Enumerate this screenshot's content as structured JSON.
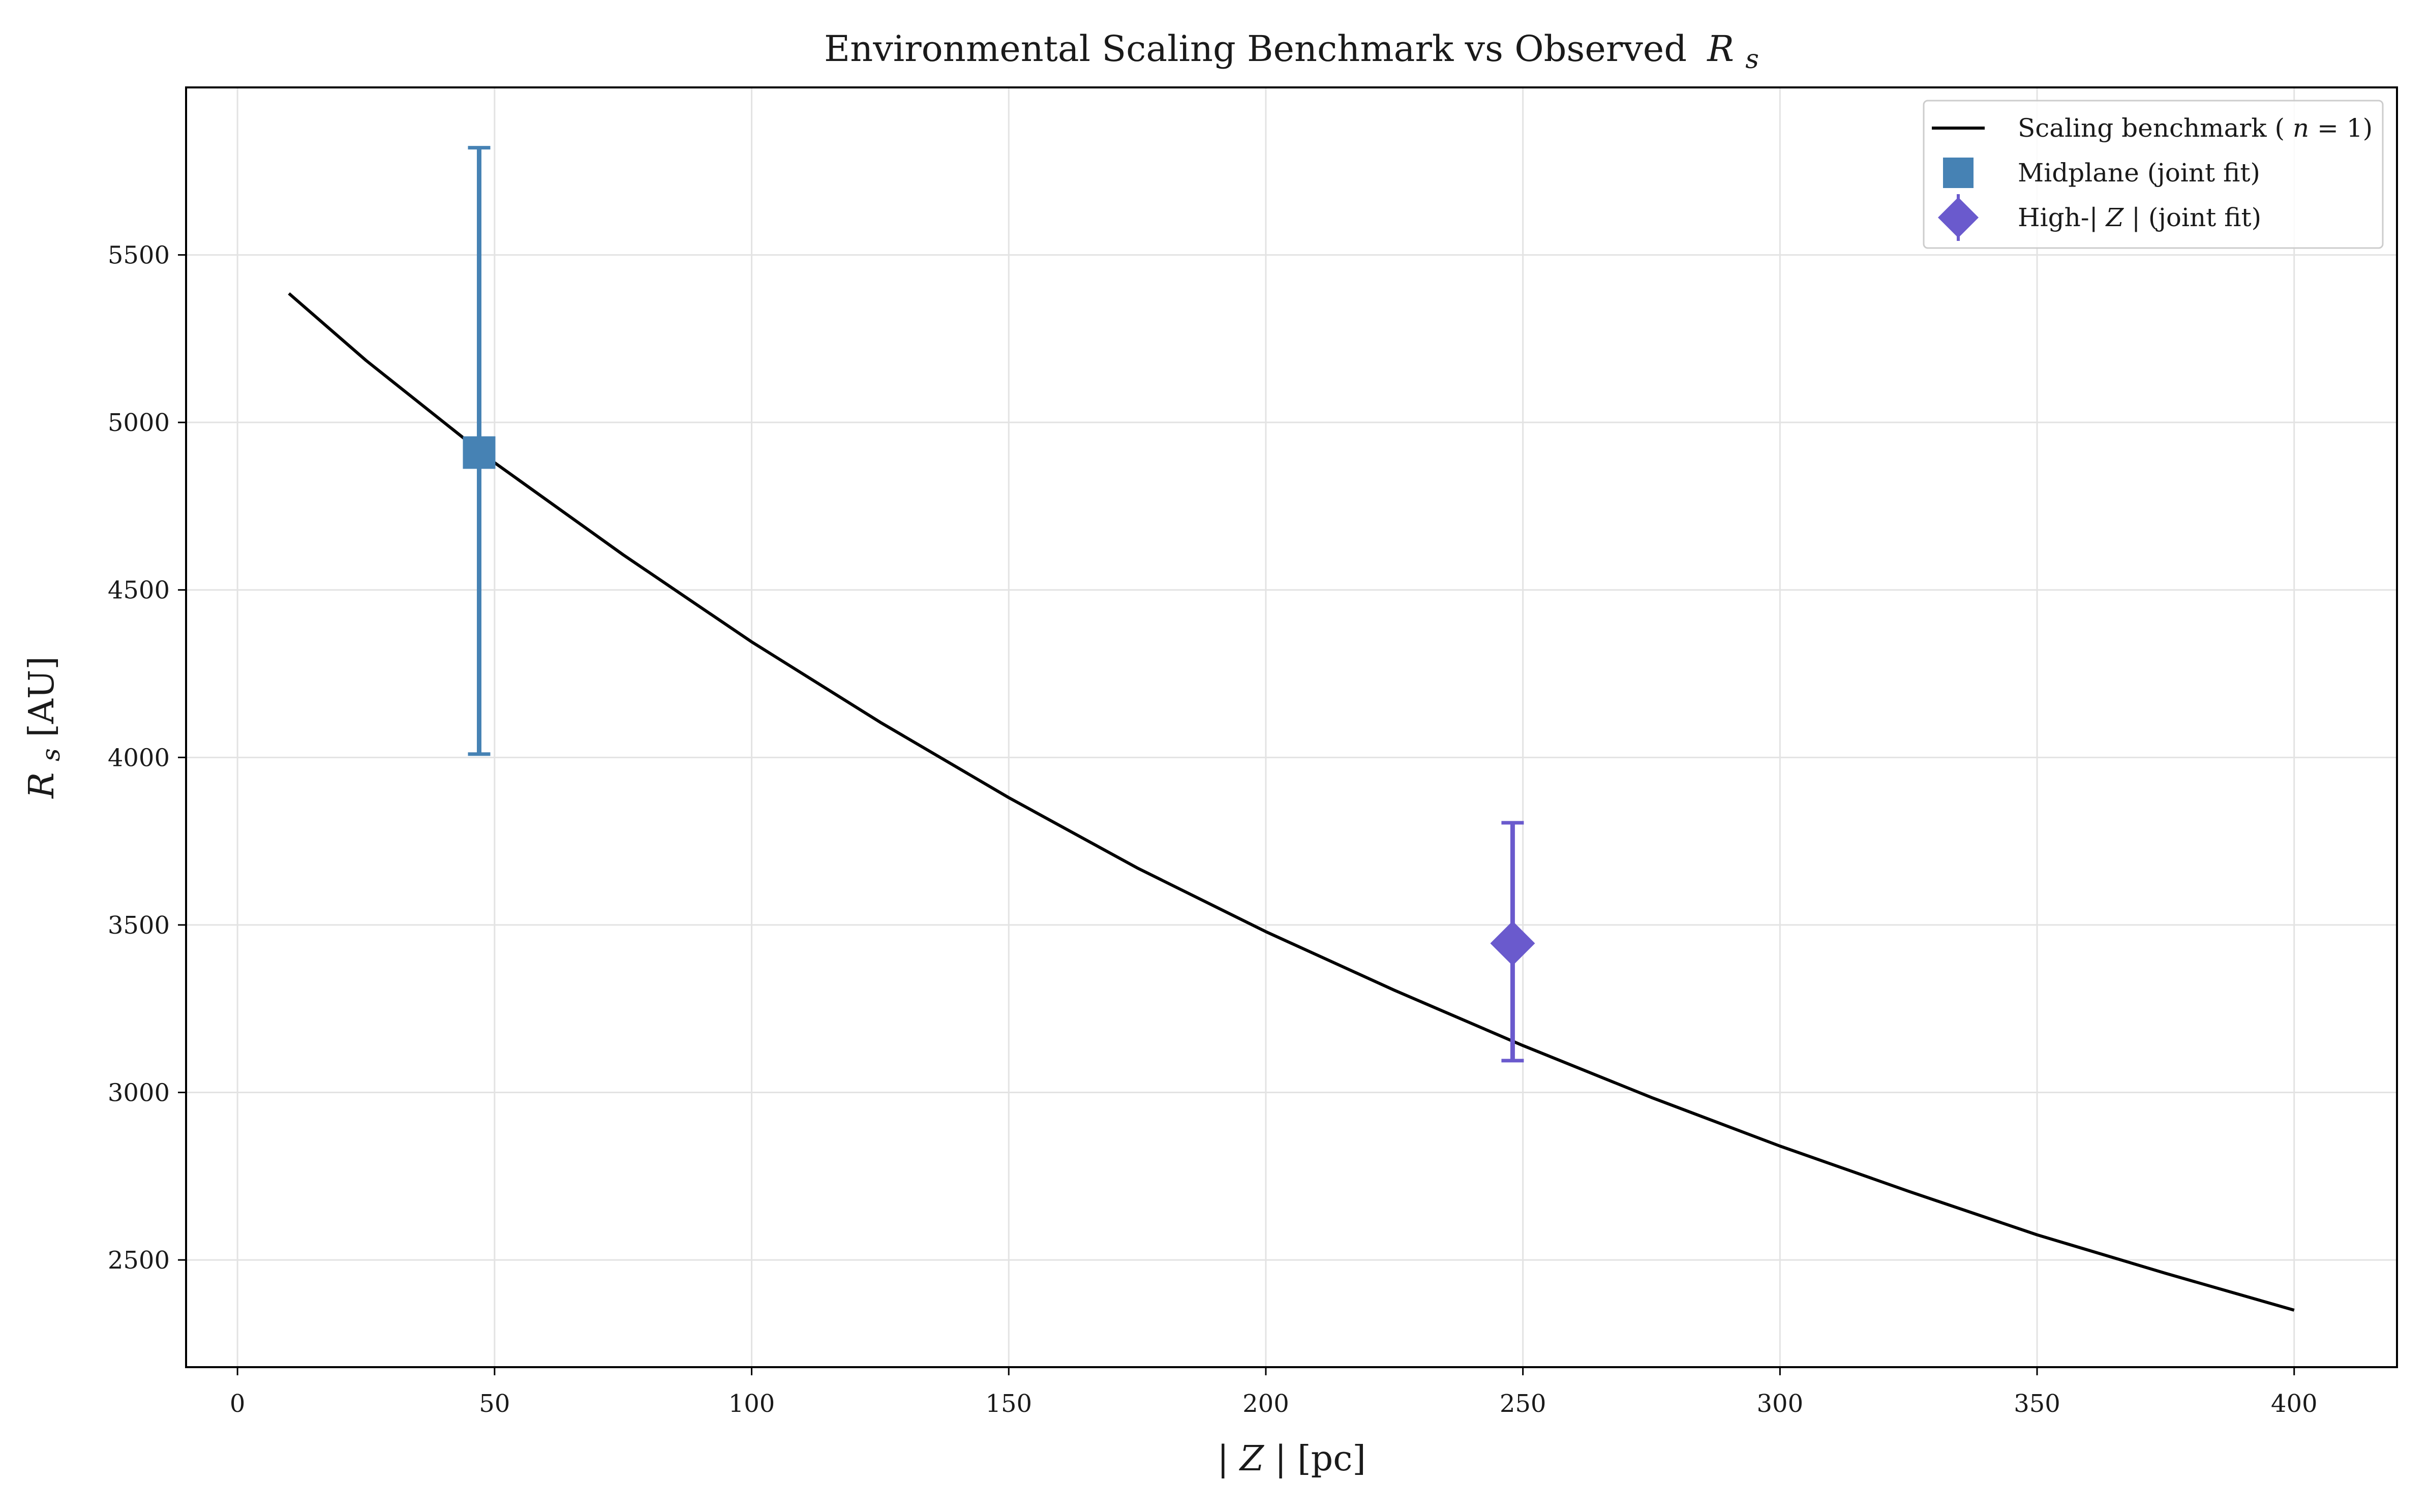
{
  "chart_data": {
    "type": "line",
    "title": "Environmental Scaling Benchmark vs Observed",
    "title_symbol": "R",
    "title_symbol_sub": "s",
    "xlabel_prefix": "|",
    "xlabel_symbol": "Z",
    "xlabel_suffix": "| [pc]",
    "ylabel_symbol": "R",
    "ylabel_sub": "s",
    "ylabel_suffix": " [AU]",
    "xlim": [
      -10,
      420
    ],
    "ylim": [
      2180,
      6000
    ],
    "xticks": [
      0,
      50,
      100,
      150,
      200,
      250,
      300,
      350,
      400
    ],
    "xtick_labels": [
      "0",
      "50",
      "100",
      "150",
      "200",
      "250",
      "300",
      "350",
      "400"
    ],
    "yticks": [
      2500,
      3000,
      3500,
      4000,
      4500,
      5000,
      5500
    ],
    "ytick_labels": [
      "2500",
      "3000",
      "3500",
      "4000",
      "4500",
      "5000",
      "5500"
    ],
    "grid": true,
    "legend_position": "top-right",
    "series": [
      {
        "name": "Scaling benchmark",
        "name_suffix_open": " (",
        "name_symbol": "n",
        "name_suffix_close": " = 1)",
        "kind": "line",
        "color": "#000000",
        "x": [
          10,
          25,
          50,
          75,
          100,
          125,
          150,
          175,
          200,
          225,
          250,
          275,
          300,
          325,
          350,
          375,
          400
        ],
        "y": [
          5385,
          5185,
          4880,
          4605,
          4345,
          4105,
          3880,
          3670,
          3480,
          3305,
          3140,
          2985,
          2840,
          2705,
          2575,
          2460,
          2350
        ]
      },
      {
        "name": "Midplane (joint fit)",
        "kind": "errorbar",
        "marker": "square",
        "color": "#4682B4",
        "x": [
          47
        ],
        "y": [
          4910
        ],
        "yerr_low": [
          4010
        ],
        "yerr_high": [
          5820
        ]
      },
      {
        "name": "High-|Z| (joint fit)",
        "name_prefix": "High-|",
        "name_symbol": "Z",
        "name_suffix": "| (joint fit)",
        "kind": "errorbar",
        "marker": "diamond",
        "color": "#6A5ACD",
        "x": [
          248
        ],
        "y": [
          3445
        ],
        "yerr_low": [
          3095
        ],
        "yerr_high": [
          3805
        ]
      }
    ]
  }
}
